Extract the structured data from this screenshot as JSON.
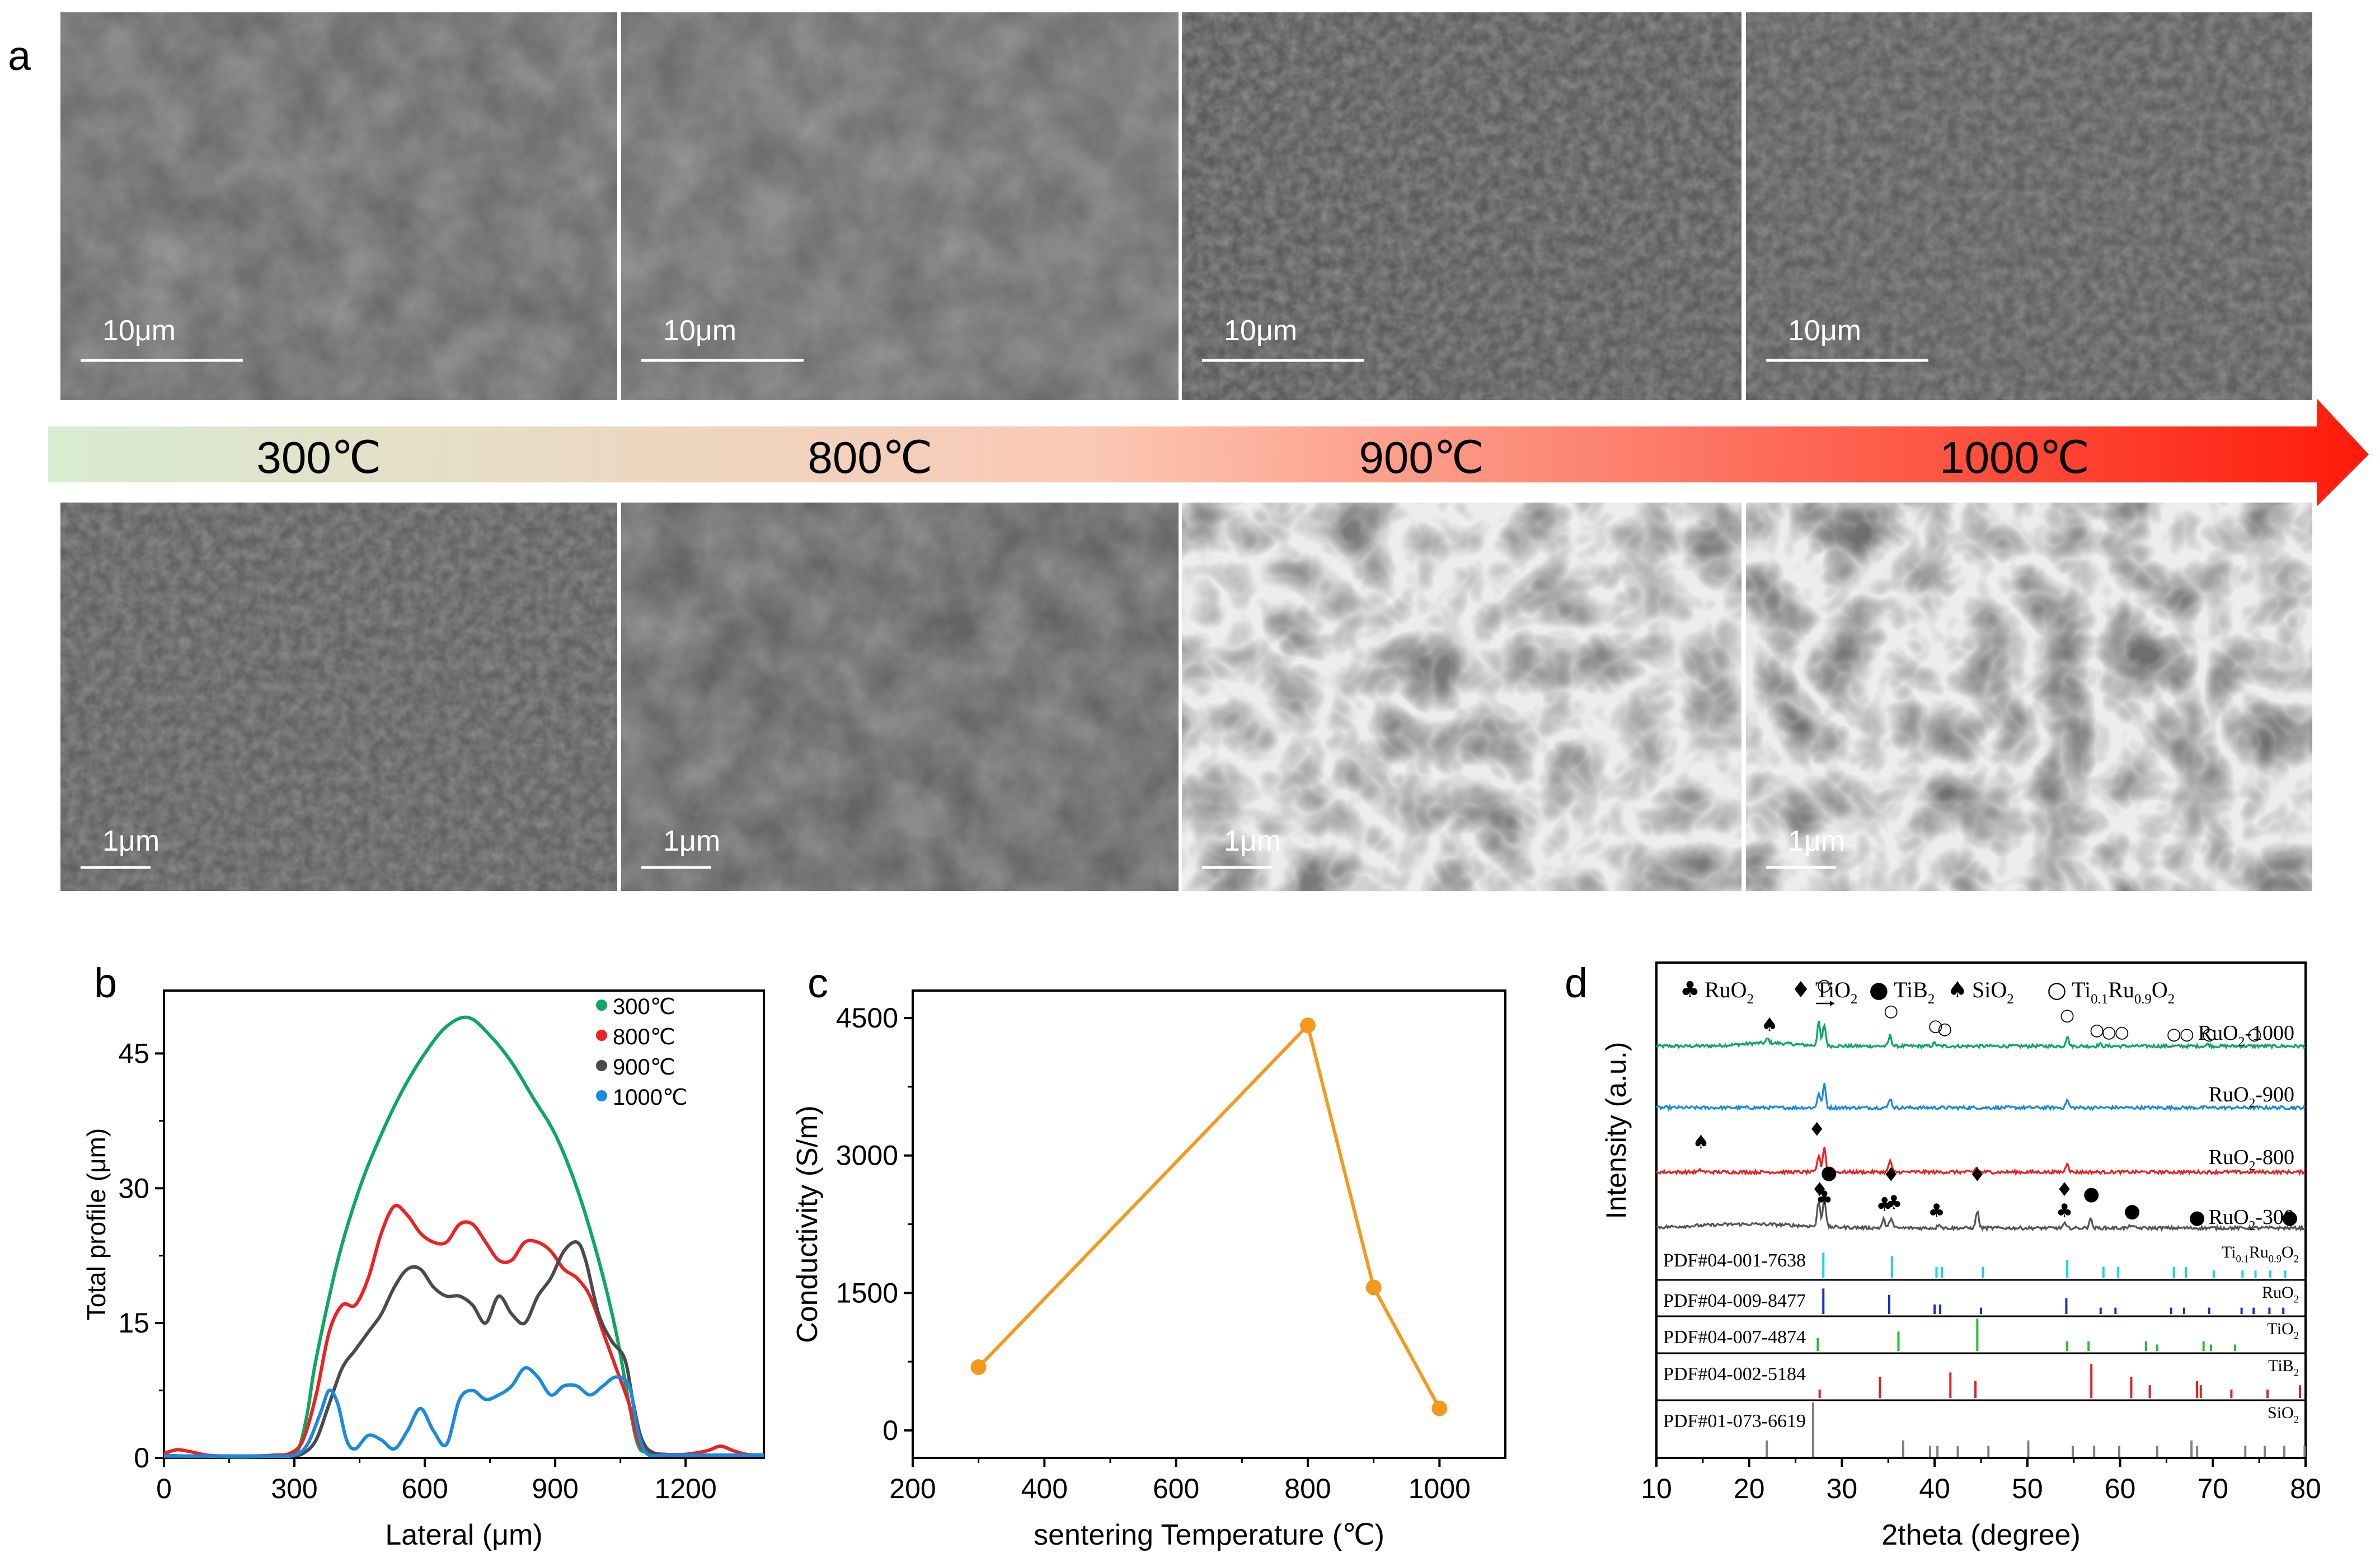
{
  "panel_letters": {
    "a": "a",
    "b": "b",
    "c": "c",
    "d": "d"
  },
  "sem": {
    "temperatures": [
      "300℃",
      "800℃",
      "900℃",
      "1000℃"
    ],
    "top_scale_bars": [
      "10μm",
      "10μm",
      "10μm",
      "10μm"
    ],
    "bottom_scale_bars": [
      "1μm",
      "1μm",
      "1μm",
      "1μm"
    ],
    "arrow_colors": {
      "start": "#d8ecd2",
      "mid": "#fbc8b4",
      "end": "#ff1a0a"
    }
  },
  "chart_data": [
    {
      "id": "b",
      "type": "line",
      "title": "",
      "xlabel": "Lateral (μm)",
      "ylabel": "Total profile (μm)",
      "xlim": [
        0,
        1380
      ],
      "ylim": [
        0,
        52
      ],
      "xticks": [
        0,
        300,
        600,
        900,
        1200
      ],
      "yticks": [
        0,
        15,
        30,
        45
      ],
      "legend_position": "top-right",
      "series": [
        {
          "name": "300℃",
          "color": "#0aa860",
          "x": [
            0,
            50,
            100,
            150,
            200,
            250,
            290,
            310,
            330,
            350,
            400,
            450,
            500,
            550,
            600,
            650,
            700,
            750,
            800,
            850,
            900,
            950,
            1000,
            1040,
            1070,
            1090,
            1110,
            1150,
            1200,
            1250,
            1300,
            1350,
            1380
          ],
          "y": [
            0.3,
            0.2,
            0.2,
            0.1,
            0.1,
            0.2,
            0.3,
            1,
            5,
            11,
            22,
            30,
            36,
            41,
            45,
            48,
            49,
            47,
            44,
            40,
            36,
            30,
            22,
            14,
            6,
            1.5,
            0.6,
            0.4,
            0.3,
            0.3,
            0.3,
            0.3,
            0.3
          ]
        },
        {
          "name": "800℃",
          "color": "#ef2020",
          "x": [
            0,
            30,
            60,
            100,
            150,
            200,
            250,
            290,
            320,
            350,
            380,
            410,
            440,
            470,
            500,
            530,
            560,
            590,
            620,
            650,
            680,
            710,
            740,
            770,
            800,
            830,
            860,
            890,
            920,
            950,
            980,
            1010,
            1040,
            1070,
            1090,
            1110,
            1150,
            1200,
            1250,
            1280,
            1310,
            1340,
            1380
          ],
          "y": [
            0.5,
            0.9,
            0.7,
            0.3,
            0.2,
            0.2,
            0.3,
            0.5,
            2,
            7,
            14,
            17,
            17,
            20,
            25,
            28,
            27,
            25,
            24,
            24,
            26,
            26,
            24,
            22,
            22,
            24,
            24,
            23,
            21,
            20,
            18,
            14,
            10,
            6,
            2,
            0.7,
            0.4,
            0.4,
            0.8,
            1.3,
            0.8,
            0.4,
            0.3
          ]
        },
        {
          "name": "900℃",
          "color": "#4a4a4a",
          "x": [
            0,
            50,
            100,
            150,
            200,
            250,
            290,
            320,
            350,
            380,
            410,
            440,
            470,
            500,
            530,
            560,
            590,
            620,
            650,
            680,
            710,
            740,
            770,
            800,
            830,
            860,
            890,
            920,
            950,
            970,
            1000,
            1030,
            1060,
            1080,
            1100,
            1130,
            1200,
            1300,
            1380
          ],
          "y": [
            0.2,
            0.2,
            0.2,
            0.2,
            0.2,
            0.2,
            0.2,
            0.5,
            2,
            6,
            10,
            12,
            14,
            16,
            19,
            21,
            21,
            19,
            18,
            18,
            17,
            15,
            18,
            16,
            15,
            18,
            20,
            23,
            24,
            22,
            16,
            13,
            11,
            6,
            2,
            0.5,
            0.3,
            0.3,
            0.3
          ]
        },
        {
          "name": "1000℃",
          "color": "#1a8ae0",
          "x": [
            0,
            50,
            100,
            150,
            200,
            250,
            300,
            330,
            360,
            380,
            400,
            420,
            440,
            470,
            500,
            530,
            560,
            590,
            620,
            650,
            680,
            710,
            740,
            770,
            800,
            830,
            860,
            890,
            920,
            950,
            980,
            1010,
            1040,
            1070,
            1090,
            1110,
            1150,
            1200,
            1300,
            1380
          ],
          "y": [
            0.2,
            0.2,
            0.2,
            0.2,
            0.2,
            0.2,
            0.3,
            1.5,
            5,
            7.5,
            6,
            2,
            1,
            2.5,
            2,
            1,
            3,
            5.5,
            3,
            1.5,
            6.5,
            7.5,
            6.5,
            7,
            8,
            10,
            9,
            7,
            8,
            8,
            7,
            8,
            9,
            8,
            3,
            0.5,
            0.3,
            0.3,
            0.3,
            0.3
          ]
        }
      ]
    },
    {
      "id": "c",
      "type": "line",
      "title": "",
      "xlabel": "sentering Temperature (℃)",
      "ylabel": "Conductivity (S/m)",
      "xlim": [
        200,
        1100
      ],
      "ylim": [
        -300,
        4800
      ],
      "xticks": [
        200,
        400,
        600,
        800,
        1000
      ],
      "yticks": [
        0,
        1500,
        3000,
        4500
      ],
      "series": [
        {
          "name": "Conductivity",
          "color": "#f39a1e",
          "x": [
            300,
            800,
            900,
            1000
          ],
          "y": [
            690,
            4420,
            1560,
            240
          ]
        }
      ]
    },
    {
      "id": "d",
      "type": "line",
      "title": "",
      "xlabel": "2theta (degree)",
      "ylabel": "Intensity (a.u.)",
      "xlim": [
        10,
        80
      ],
      "xticks": [
        10,
        20,
        30,
        40,
        50,
        60,
        70,
        80
      ],
      "legend": {
        "items": [
          {
            "symbol": "♣",
            "name": "RuO",
            "sub": "2"
          },
          {
            "symbol": "♦",
            "name": "TiO",
            "sub": "2"
          },
          {
            "symbol": "●",
            "name": "TiB",
            "sub": "2"
          },
          {
            "symbol": "♠",
            "name": "SiO",
            "sub": "2"
          },
          {
            "symbol": "○",
            "name": "Ti",
            "sub": "0.1",
            "name2": "Ru",
            "sub2": "0.9",
            "name3": "O",
            "sub3": "2"
          }
        ]
      },
      "patterns": [
        {
          "label": "RuO",
          "sub": "2",
          "suffix": "-1000",
          "color": "#0aa860",
          "peaks": [
            [
              22,
              4
            ],
            [
              27.5,
              22
            ],
            [
              28.1,
              20
            ],
            [
              35.2,
              10
            ],
            [
              40,
              3
            ],
            [
              54.3,
              9
            ],
            [
              57.8,
              2
            ],
            [
              69.5,
              2
            ]
          ]
        },
        {
          "label": "RuO",
          "sub": "2",
          "suffix": "-900",
          "color": "#1a8ae0",
          "peaks": [
            [
              27.5,
              14
            ],
            [
              28.1,
              22
            ],
            [
              35.2,
              9
            ],
            [
              54.3,
              7
            ]
          ]
        },
        {
          "label": "RuO",
          "sub": "2",
          "suffix": "-800",
          "color": "#ef2020",
          "peaks": [
            [
              14.8,
              2
            ],
            [
              27.5,
              16
            ],
            [
              28.1,
              24
            ],
            [
              35.2,
              11
            ],
            [
              44.5,
              4
            ],
            [
              54.3,
              9
            ]
          ]
        },
        {
          "label": "RuO",
          "sub": "2",
          "suffix": "-300",
          "color": "#555555",
          "peaks": [
            [
              27.5,
              24
            ],
            [
              28.1,
              28
            ],
            [
              34.5,
              8
            ],
            [
              35.3,
              10
            ],
            [
              40.5,
              4
            ],
            [
              44.6,
              16
            ],
            [
              54,
              4
            ],
            [
              56.8,
              9
            ],
            [
              61.2,
              3
            ]
          ]
        }
      ],
      "pattern_markers": [
        {
          "pattern": 0,
          "symbol": "♠",
          "x": 22.2,
          "offset": 14
        },
        {
          "pattern": 0,
          "symbol": "○",
          "x": 28.1,
          "offset": 52
        },
        {
          "pattern": 0,
          "symbol": "○",
          "x": 35.3,
          "offset": 28
        },
        {
          "pattern": 0,
          "symbol": "○",
          "x": 40.1,
          "offset": 14
        },
        {
          "pattern": 0,
          "symbol": "○",
          "x": 41.1,
          "offset": 11
        },
        {
          "pattern": 0,
          "symbol": "○",
          "x": 54.3,
          "offset": 24
        },
        {
          "pattern": 0,
          "symbol": "○",
          "x": 57.5,
          "offset": 10
        },
        {
          "pattern": 0,
          "symbol": "○",
          "x": 58.8,
          "offset": 8
        },
        {
          "pattern": 0,
          "symbol": "○",
          "x": 60.2,
          "offset": 8
        },
        {
          "pattern": 0,
          "symbol": "○",
          "x": 65.8,
          "offset": 6
        },
        {
          "pattern": 0,
          "symbol": "○",
          "x": 67.2,
          "offset": 6
        },
        {
          "pattern": 0,
          "symbol": "○",
          "x": 69.6,
          "offset": 6
        },
        {
          "pattern": 0,
          "symbol": "○",
          "x": 74.5,
          "offset": 6
        },
        {
          "pattern": 2,
          "symbol": "♠",
          "x": 14.8,
          "offset": 22
        },
        {
          "pattern": 2,
          "symbol": "♦",
          "x": 27.3,
          "offset": 34
        },
        {
          "pattern": 3,
          "symbol": "♦",
          "x": 27.6,
          "offset": 30
        },
        {
          "pattern": 3,
          "symbol": "●",
          "x": 28.6,
          "offset": 46
        },
        {
          "pattern": 3,
          "symbol": "♣",
          "x": 28.1,
          "offset": 22
        },
        {
          "pattern": 3,
          "symbol": "♣",
          "x": 34.6,
          "offset": 16
        },
        {
          "pattern": 3,
          "symbol": "♣",
          "x": 35.6,
          "offset": 18
        },
        {
          "pattern": 3,
          "symbol": "♦",
          "x": 35.3,
          "offset": 44
        },
        {
          "pattern": 3,
          "symbol": "♣",
          "x": 40.2,
          "offset": 10
        },
        {
          "pattern": 3,
          "symbol": "♦",
          "x": 44.6,
          "offset": 44
        },
        {
          "pattern": 3,
          "symbol": "♦",
          "x": 54.0,
          "offset": 30
        },
        {
          "pattern": 3,
          "symbol": "♣",
          "x": 54.0,
          "offset": 10
        },
        {
          "pattern": 3,
          "symbol": "●",
          "x": 56.9,
          "offset": 26
        },
        {
          "pattern": 3,
          "symbol": "●",
          "x": 61.3,
          "offset": 10
        },
        {
          "pattern": 3,
          "symbol": "●",
          "x": 68.3,
          "offset": 4
        },
        {
          "pattern": 3,
          "symbol": "●",
          "x": 78.3,
          "offset": 4
        }
      ],
      "references": [
        {
          "pdf": "PDF#04-001-7638",
          "phase": "Ti",
          "phase_sub": "0.1",
          "phase2": "Ru",
          "phase_sub2": "0.9",
          "phase3": "O",
          "phase_sub3": "2",
          "color": "#19d4e0",
          "peaks": [
            [
              28.0,
              0.7
            ],
            [
              35.4,
              0.6
            ],
            [
              40.2,
              0.3
            ],
            [
              40.8,
              0.3
            ],
            [
              45.2,
              0.3
            ],
            [
              54.3,
              0.5
            ],
            [
              58.2,
              0.3
            ],
            [
              59.8,
              0.3
            ],
            [
              65.8,
              0.3
            ],
            [
              67.1,
              0.3
            ],
            [
              70.1,
              0.2
            ],
            [
              73.2,
              0.2
            ],
            [
              74.6,
              0.2
            ],
            [
              76.2,
              0.2
            ],
            [
              77.8,
              0.2
            ]
          ]
        },
        {
          "pdf": "PDF#04-009-8477",
          "phase": "RuO",
          "phase_sub": "2",
          "color": "#1a30c0",
          "peaks": [
            [
              28.0,
              0.8
            ],
            [
              35.1,
              0.6
            ],
            [
              40.0,
              0.3
            ],
            [
              40.6,
              0.3
            ],
            [
              45.0,
              0.2
            ],
            [
              54.2,
              0.5
            ],
            [
              57.9,
              0.2
            ],
            [
              59.5,
              0.2
            ],
            [
              65.5,
              0.2
            ],
            [
              66.9,
              0.2
            ],
            [
              69.6,
              0.2
            ],
            [
              73.1,
              0.2
            ],
            [
              74.4,
              0.2
            ],
            [
              76.1,
              0.2
            ],
            [
              77.6,
              0.2
            ]
          ]
        },
        {
          "pdf": "PDF#04-007-4874",
          "phase": "TiO",
          "phase_sub": "2",
          "color": "#20c030",
          "peaks": [
            [
              27.4,
              0.4
            ],
            [
              36.1,
              0.6
            ],
            [
              44.6,
              1.0
            ],
            [
              54.3,
              0.3
            ],
            [
              56.6,
              0.3
            ],
            [
              62.8,
              0.3
            ],
            [
              64.0,
              0.2
            ],
            [
              69.0,
              0.3
            ],
            [
              69.8,
              0.2
            ],
            [
              72.4,
              0.2
            ]
          ]
        },
        {
          "pdf": "PDF#04-002-5184",
          "phase": "TiB",
          "phase_sub": "2",
          "color": "#e02020",
          "peaks": [
            [
              27.6,
              0.2
            ],
            [
              34.1,
              0.5
            ],
            [
              41.7,
              0.6
            ],
            [
              44.4,
              0.4
            ],
            [
              56.9,
              0.8
            ],
            [
              61.2,
              0.5
            ],
            [
              63.2,
              0.3
            ],
            [
              68.3,
              0.4
            ],
            [
              68.7,
              0.3
            ],
            [
              72.0,
              0.2
            ],
            [
              75.9,
              0.2
            ],
            [
              79.4,
              0.3
            ]
          ]
        },
        {
          "pdf": "PDF#01-073-6619",
          "phase": "SiO",
          "phase_sub": "2",
          "color": "#808080",
          "peaks": [
            [
              21.9,
              0.3
            ],
            [
              26.9,
              1.0
            ],
            [
              36.6,
              0.3
            ],
            [
              39.5,
              0.2
            ],
            [
              40.3,
              0.2
            ],
            [
              42.5,
              0.2
            ],
            [
              45.8,
              0.2
            ],
            [
              50.1,
              0.3
            ],
            [
              54.9,
              0.2
            ],
            [
              57.2,
              0.2
            ],
            [
              59.9,
              0.2
            ],
            [
              64.0,
              0.2
            ],
            [
              67.7,
              0.3
            ],
            [
              68.3,
              0.2
            ],
            [
              73.5,
              0.2
            ],
            [
              75.6,
              0.2
            ],
            [
              77.7,
              0.2
            ],
            [
              79.9,
              0.2
            ]
          ]
        }
      ]
    }
  ]
}
